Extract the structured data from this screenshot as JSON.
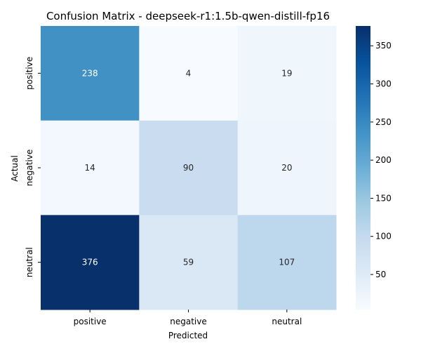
{
  "chart_data": {
    "type": "heatmap",
    "title": "Confusion Matrix - deepseek-r1:1.5b-qwen-distill-fp16",
    "xlabel": "Predicted",
    "ylabel": "Actual",
    "x_categories": [
      "positive",
      "negative",
      "neutral"
    ],
    "y_categories": [
      "positive",
      "negative",
      "neutral"
    ],
    "values": [
      [
        238,
        4,
        19
      ],
      [
        14,
        90,
        20
      ],
      [
        376,
        59,
        107
      ]
    ],
    "colormap": "Blues",
    "colorbar": {
      "range": [
        4,
        376
      ],
      "ticks": [
        50,
        100,
        150,
        200,
        250,
        300,
        350
      ]
    }
  }
}
